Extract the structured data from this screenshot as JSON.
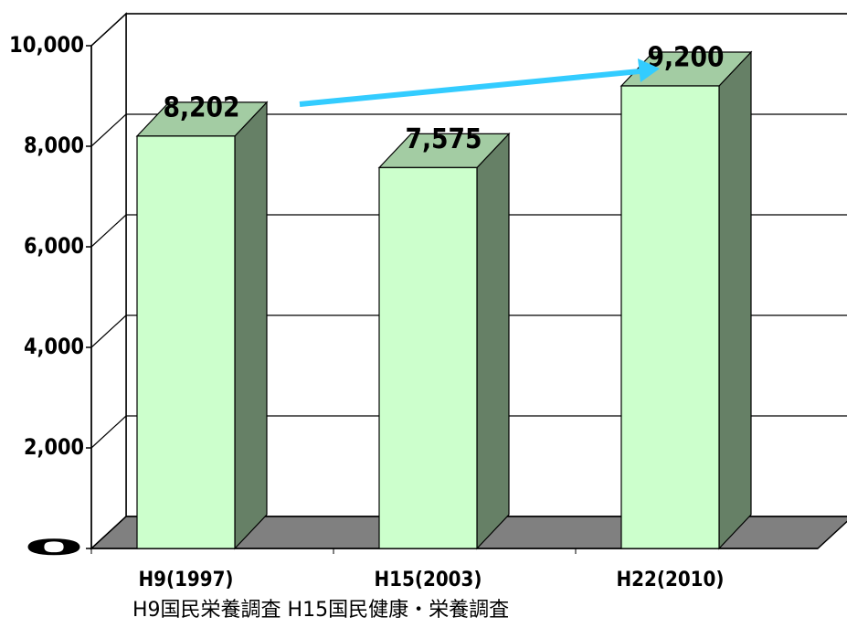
{
  "chart_data": {
    "type": "bar3d",
    "categories": [
      "H9(1997)",
      "H15(2003)",
      "H22(2010)"
    ],
    "values": [
      8202,
      7575,
      9200
    ],
    "value_labels": [
      "8,202",
      "7,575",
      "9,200"
    ],
    "color": "#ccffcc",
    "ylim": [
      0,
      10000
    ],
    "yticks": [
      0,
      {
        "value": 2000,
        "label": "2,000"
      },
      {
        "value": 4000,
        "label": "4,000"
      },
      {
        "value": 6000,
        "label": "6,000"
      },
      {
        "value": 8000,
        "label": "8,000"
      },
      {
        "value": 10000,
        "label": "10,000"
      }
    ],
    "grid": true,
    "note": "H9国民栄養調査  H15国民健康・栄養調査"
  }
}
